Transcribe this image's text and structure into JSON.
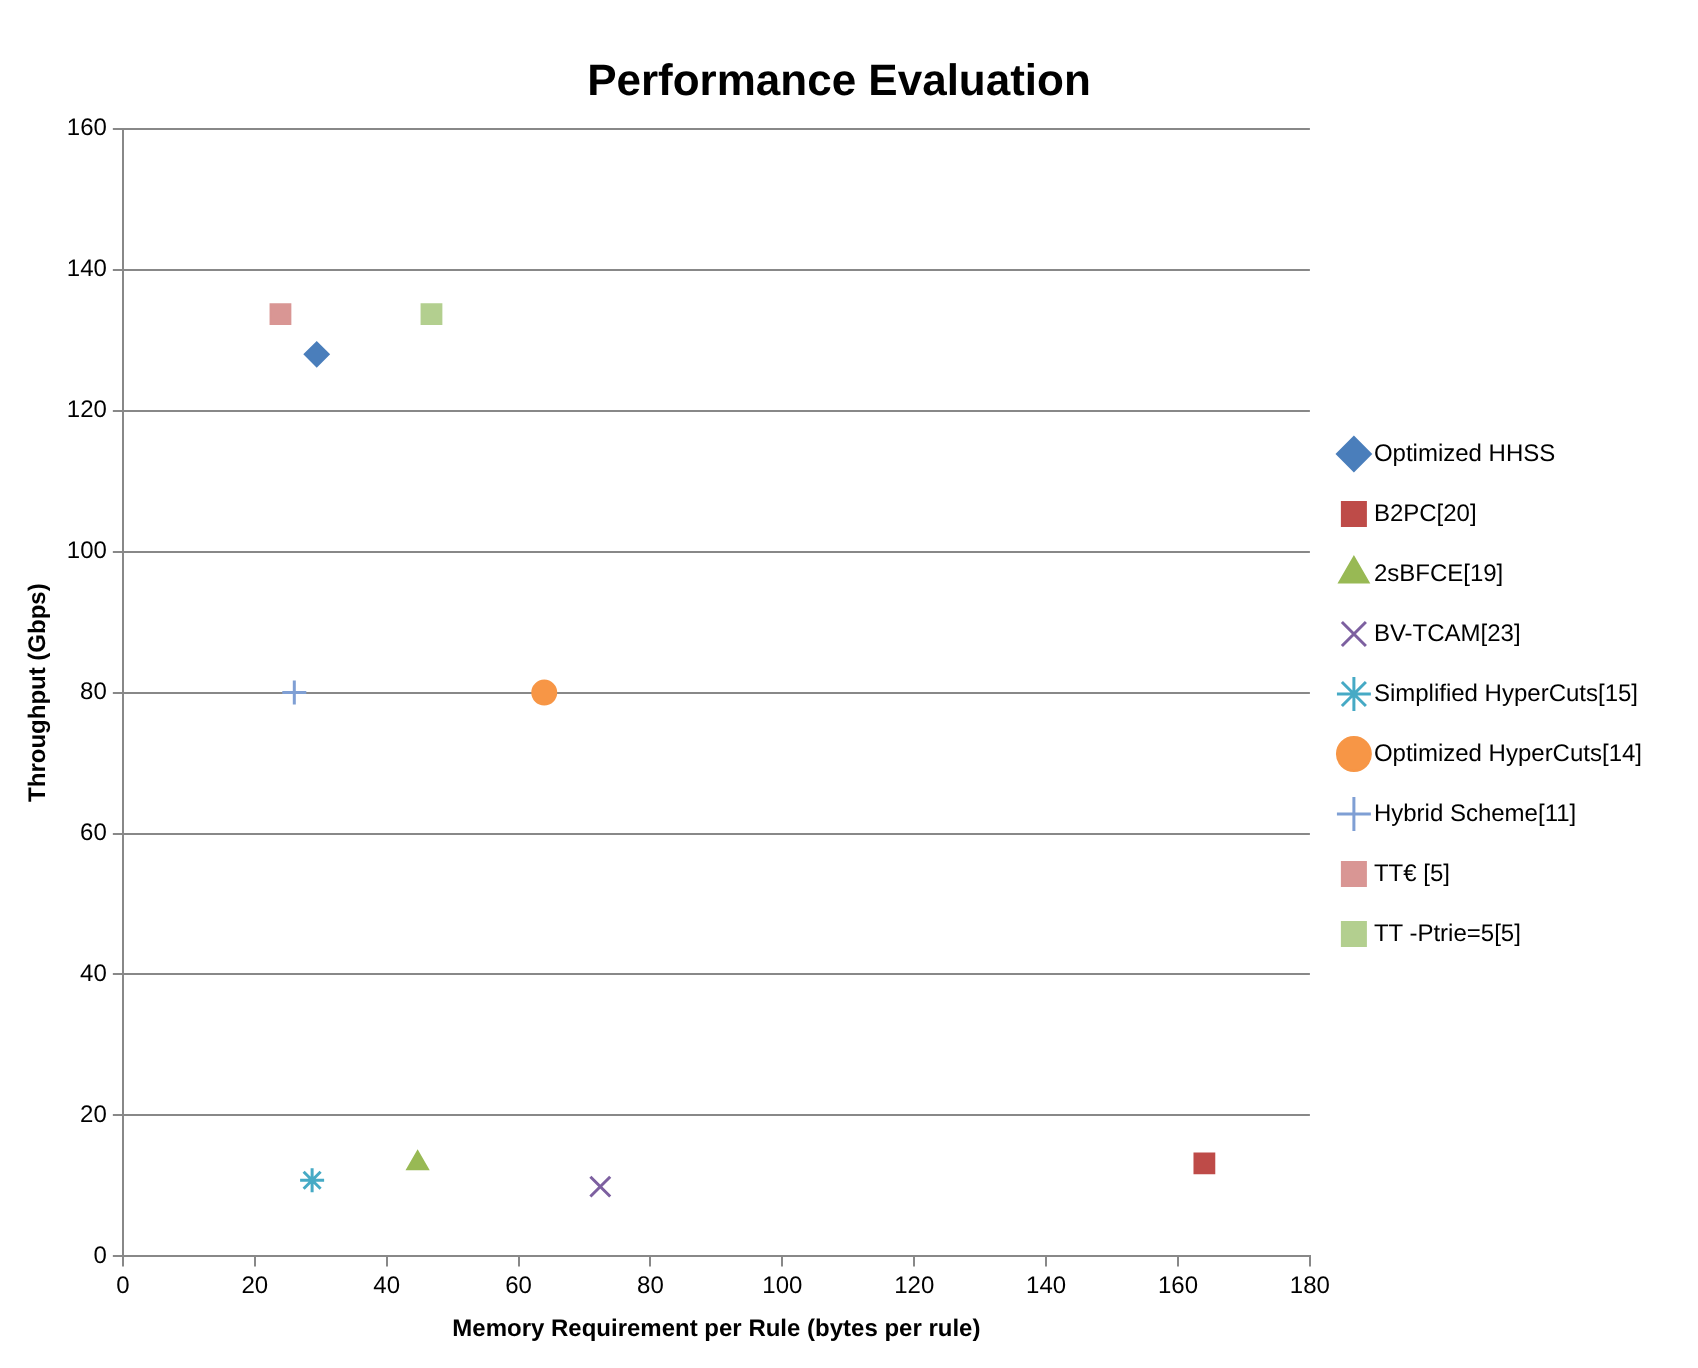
{
  "chart_data": {
    "type": "scatter",
    "title": "Performance Evaluation",
    "xlabel": "Memory Requirement per Rule (bytes per rule)",
    "ylabel": "Throughput (Gbps)",
    "xlim": [
      0,
      180
    ],
    "xticks": [
      0,
      20,
      40,
      60,
      80,
      100,
      120,
      140,
      160,
      180
    ],
    "ylim": [
      0,
      160
    ],
    "yticks": [
      0,
      20,
      40,
      60,
      80,
      100,
      120,
      140,
      160
    ],
    "grid": "y",
    "legend": "right",
    "series": [
      {
        "name": "Optimized HHSS",
        "color": "#4a7ebb",
        "marker": "diamond",
        "x": [
          29.4
        ],
        "values": [
          128
        ]
      },
      {
        "name": "B2PC[20]",
        "color": "#be4b48",
        "marker": "square",
        "x": [
          164
        ],
        "values": [
          13.2
        ]
      },
      {
        "name": "2sBFCE[19]",
        "color": "#98b954",
        "marker": "triangle",
        "x": [
          44.7
        ],
        "values": [
          13.2
        ]
      },
      {
        "name": "BV-TCAM[23]",
        "color": "#7d60a0",
        "marker": "x",
        "x": [
          72.4
        ],
        "values": [
          9.9
        ]
      },
      {
        "name": "Simplified HyperCuts[15]",
        "color": "#46aac5",
        "marker": "cross",
        "x": [
          28.7
        ],
        "values": [
          10.8
        ]
      },
      {
        "name": "Optimized HyperCuts[14]",
        "color": "#f79646",
        "marker": "circle",
        "x": [
          63.9
        ],
        "values": [
          80
        ]
      },
      {
        "name": "Hybrid Scheme[11]",
        "color": "#7f9fd4",
        "marker": "plus",
        "x": [
          26
        ],
        "values": [
          80
        ]
      },
      {
        "name": "TT€ [5]",
        "color": "#d99694",
        "marker": "square",
        "x": [
          23.9
        ],
        "values": [
          133.7
        ]
      },
      {
        "name": "TT -Ptrie=5[5]",
        "color": "#b3cf8f",
        "marker": "square",
        "x": [
          46.8
        ],
        "values": [
          133.7
        ]
      }
    ]
  }
}
